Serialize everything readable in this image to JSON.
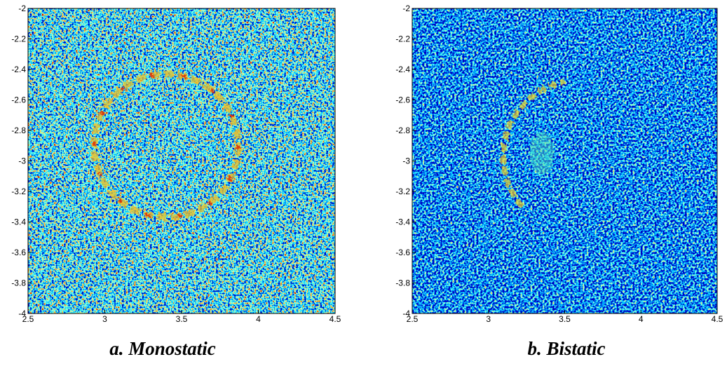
{
  "chart_data": [
    {
      "type": "image",
      "title": "a. Monostatic",
      "xlim": [
        2.5,
        4.5
      ],
      "ylim": [
        -4,
        -2
      ],
      "xticks": [
        2.5,
        3,
        3.5,
        4,
        4.5
      ],
      "yticks": [
        -2,
        -2.2,
        -2.4,
        -2.6,
        -2.8,
        -3,
        -3.2,
        -3.4,
        -3.6,
        -3.8,
        -4
      ]
    },
    {
      "type": "image",
      "title": "b. Bistatic",
      "xlim": [
        2.5,
        4.5
      ],
      "ylim": [
        -4,
        -2
      ],
      "xticks": [
        2.5,
        3,
        3.5,
        4,
        4.5
      ],
      "yticks": [
        -2,
        -2.2,
        -2.4,
        -2.6,
        -2.8,
        -3,
        -3.2,
        -3.4,
        -3.6,
        -3.8,
        -4
      ]
    }
  ]
}
